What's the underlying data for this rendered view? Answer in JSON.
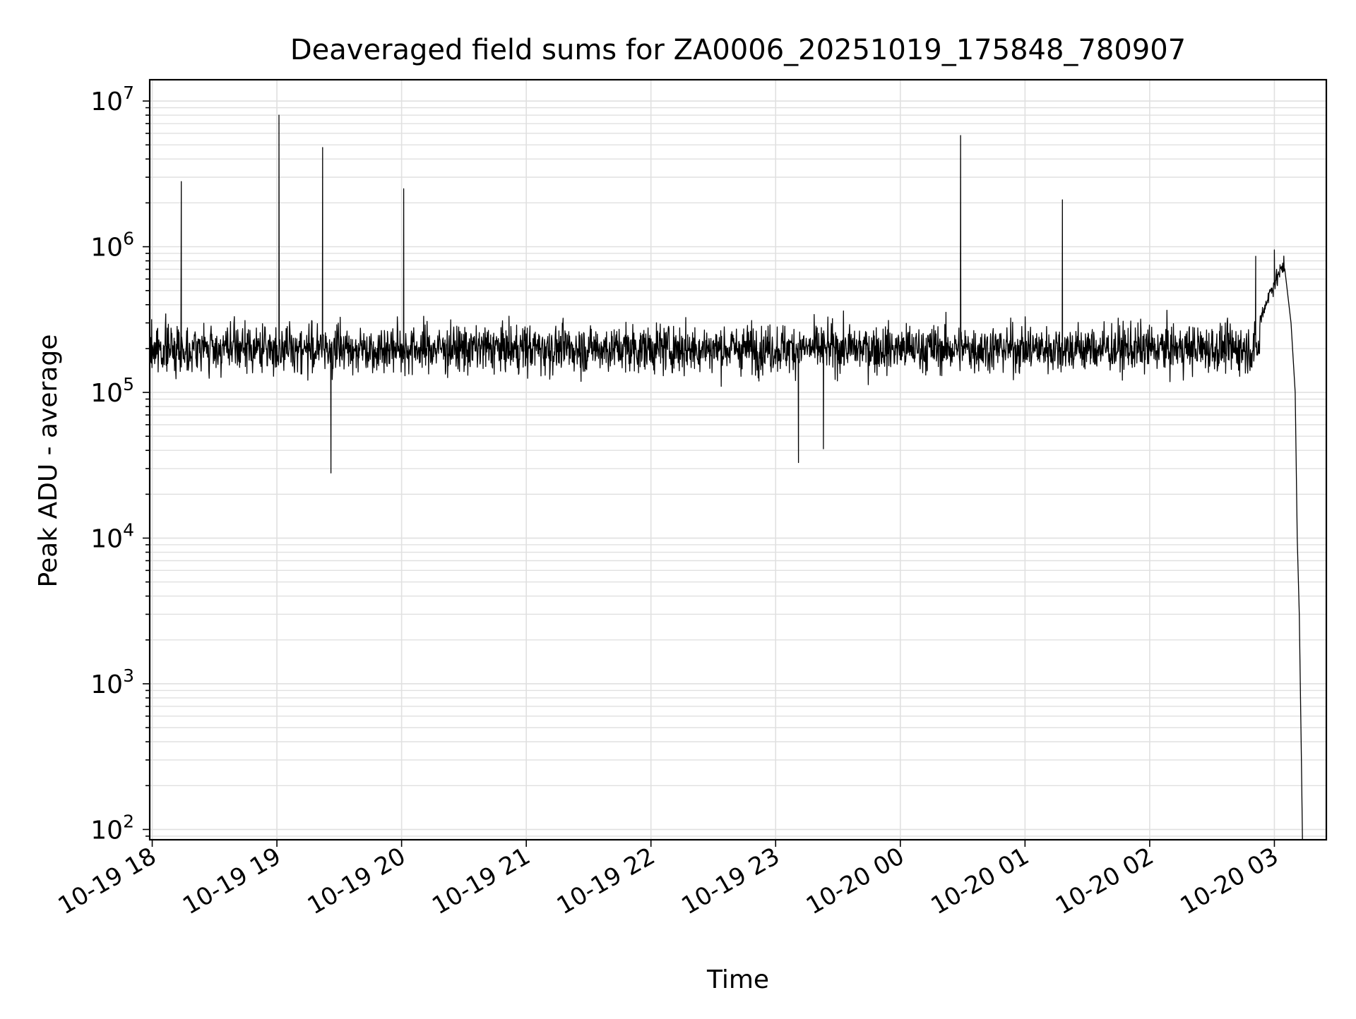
{
  "chart_data": {
    "type": "line",
    "title": "Deaveraged field sums for ZA0006_20251019_175848_780907",
    "xlabel": "Time",
    "ylabel": "Peak ADU - average",
    "yscale": "log",
    "ylim": [
      85,
      14000000
    ],
    "xlim": [
      "2025-10-19 17:58:48",
      "2025-10-20 03:25:00"
    ],
    "grid": true,
    "line_color": "#000000",
    "grid_color": "#e0e0e0",
    "x_ticks": [
      {
        "time": "2025-10-19 18:00",
        "label": "10-19 18"
      },
      {
        "time": "2025-10-19 19:00",
        "label": "10-19 19"
      },
      {
        "time": "2025-10-19 20:00",
        "label": "10-19 20"
      },
      {
        "time": "2025-10-19 21:00",
        "label": "10-19 21"
      },
      {
        "time": "2025-10-19 22:00",
        "label": "10-19 22"
      },
      {
        "time": "2025-10-19 23:00",
        "label": "10-19 23"
      },
      {
        "time": "2025-10-20 00:00",
        "label": "10-20 00"
      },
      {
        "time": "2025-10-20 01:00",
        "label": "10-20 01"
      },
      {
        "time": "2025-10-20 02:00",
        "label": "10-20 02"
      },
      {
        "time": "2025-10-20 03:00",
        "label": "10-20 03"
      }
    ],
    "y_ticks": [
      {
        "value": 100,
        "base": "10",
        "exp": "2"
      },
      {
        "value": 1000,
        "base": "10",
        "exp": "3"
      },
      {
        "value": 10000,
        "base": "10",
        "exp": "4"
      },
      {
        "value": 100000,
        "base": "10",
        "exp": "5"
      },
      {
        "value": 1000000,
        "base": "10",
        "exp": "6"
      },
      {
        "value": 10000000,
        "base": "10",
        "exp": "7"
      }
    ],
    "series": [
      {
        "points": [
          [
            "2025-10-19 18:14",
            2800000
          ],
          [
            "2025-10-19 19:01",
            8000000
          ],
          [
            "2025-10-19 19:22",
            4800000
          ],
          [
            "2025-10-19 20:01",
            2500000
          ],
          [
            "2025-10-20 00:29",
            5800000
          ],
          [
            "2025-10-20 01:18",
            2100000
          ],
          [
            "2025-10-19 19:26",
            28000
          ],
          [
            "2025-10-19 23:11",
            33000
          ],
          [
            "2025-10-19 23:23",
            41000
          ],
          [
            "2025-10-20 02:51",
            860000
          ],
          [
            "2025-10-20 03:00",
            950000
          ],
          [
            "2025-10-20 03:05",
            700000
          ],
          [
            "2025-10-20 03:08",
            300000
          ],
          [
            "2025-10-20 03:10",
            100000
          ],
          [
            "2025-10-20 03:11",
            10000
          ],
          [
            "2025-10-20 03:12",
            3000
          ],
          [
            "2025-10-20 03:13",
            300
          ],
          [
            "2025-10-20 03:13:30",
            85
          ]
        ]
      }
    ]
  }
}
